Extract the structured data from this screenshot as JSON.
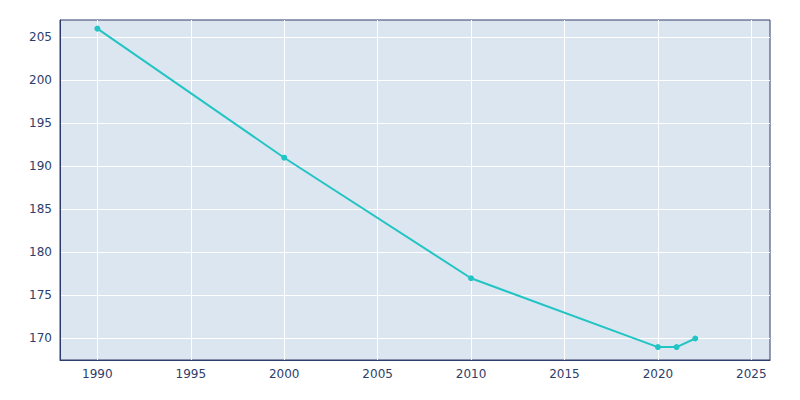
{
  "chart_data": {
    "type": "line",
    "x": [
      1990,
      2000,
      2010,
      2020,
      2021,
      2022
    ],
    "values": [
      206,
      191,
      177,
      169,
      169,
      170
    ],
    "color": "#22c4c4",
    "marker": "circle",
    "xlim": [
      1988,
      2026
    ],
    "ylim": [
      167.5,
      207
    ],
    "xticks": [
      1990,
      1995,
      2000,
      2005,
      2010,
      2015,
      2020,
      2025
    ],
    "yticks": [
      170,
      175,
      180,
      185,
      190,
      195,
      200,
      205
    ],
    "grid": true
  }
}
